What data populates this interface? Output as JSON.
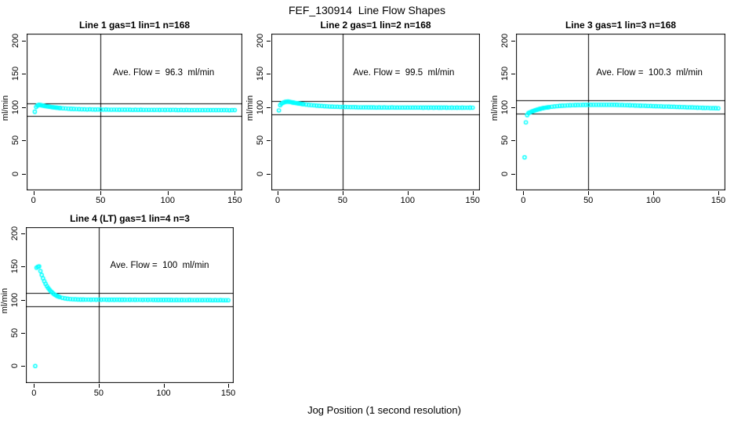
{
  "figure": {
    "title": "FEF_130914  Line Flow Shapes",
    "xlabel": "Jog Position (1 second resolution)",
    "background_color": "#ffffff",
    "frame_color": "#000000",
    "point_color": "#00ffff"
  },
  "chart_data": [
    {
      "type": "scatter",
      "title": "Line 1 gas=1 lin=1 n=168",
      "annotation": "Ave. Flow =  96.3  ml/min",
      "ave_flow": 96.3,
      "ylabel": "ml/min",
      "marker": "open-circle",
      "xticks": [
        0,
        50,
        100,
        150
      ],
      "yticks": [
        0,
        50,
        100,
        150,
        200
      ],
      "ref_line_upper": 105.9,
      "ref_line_lower": 86.7,
      "vline_x": 50,
      "xlim": [
        0,
        150
      ],
      "ylim": [
        0,
        200
      ],
      "points": [
        [
          1,
          93
        ],
        [
          2,
          100.1
        ],
        [
          3,
          102.4
        ],
        [
          4,
          103.4
        ],
        [
          5,
          103.1
        ],
        [
          6,
          102.7
        ],
        [
          7,
          102.3
        ],
        [
          8,
          101.9
        ],
        [
          9,
          101.5
        ],
        [
          10,
          101.2
        ],
        [
          11,
          100.8
        ],
        [
          12,
          100.5
        ],
        [
          13,
          100.2
        ],
        [
          14,
          99.9
        ],
        [
          15,
          99.7
        ],
        [
          16,
          99.4
        ],
        [
          17,
          99.2
        ],
        [
          18,
          99
        ],
        [
          19,
          98.8
        ],
        [
          20,
          98.6
        ],
        [
          22,
          98.2
        ],
        [
          24,
          97.9
        ],
        [
          26,
          97.6
        ],
        [
          28,
          97.4
        ],
        [
          30,
          97.2
        ],
        [
          32,
          97
        ],
        [
          34,
          96.9
        ],
        [
          36,
          96.7
        ],
        [
          38,
          96.6
        ],
        [
          40,
          96.5
        ],
        [
          42,
          96.6
        ],
        [
          44,
          96.4
        ],
        [
          46,
          96.3
        ],
        [
          48,
          96.4
        ],
        [
          50,
          96.3
        ],
        [
          52,
          96.2
        ],
        [
          54,
          96.3
        ],
        [
          56,
          96.2
        ],
        [
          58,
          96.1
        ],
        [
          60,
          96.2
        ],
        [
          62,
          96.1
        ],
        [
          64,
          96
        ],
        [
          66,
          96.1
        ],
        [
          68,
          96
        ],
        [
          70,
          96.1
        ],
        [
          72,
          96
        ],
        [
          74,
          95.9
        ],
        [
          76,
          96
        ],
        [
          78,
          95.9
        ],
        [
          80,
          96
        ],
        [
          82,
          95.9
        ],
        [
          84,
          95.8
        ],
        [
          86,
          95.9
        ],
        [
          88,
          95.8
        ],
        [
          90,
          95.9
        ],
        [
          92,
          95.8
        ],
        [
          94,
          95.7
        ],
        [
          96,
          95.8
        ],
        [
          98,
          95.7
        ],
        [
          100,
          95.8
        ],
        [
          102,
          95.7
        ],
        [
          104,
          95.8
        ],
        [
          106,
          95.7
        ],
        [
          108,
          95.6
        ],
        [
          110,
          95.7
        ],
        [
          112,
          95.6
        ],
        [
          114,
          95.7
        ],
        [
          116,
          95.6
        ],
        [
          118,
          95.5
        ],
        [
          120,
          95.6
        ],
        [
          122,
          95.5
        ],
        [
          124,
          95.6
        ],
        [
          126,
          95.5
        ],
        [
          128,
          95.6
        ],
        [
          130,
          95.5
        ],
        [
          132,
          95.4
        ],
        [
          134,
          95.5
        ],
        [
          136,
          95.4
        ],
        [
          138,
          95.5
        ],
        [
          140,
          95.4
        ],
        [
          142,
          95.5
        ],
        [
          144,
          95.4
        ],
        [
          146,
          95.3
        ],
        [
          148,
          95.4
        ],
        [
          150,
          95.5
        ]
      ]
    },
    {
      "type": "scatter",
      "title": "Line 2 gas=1 lin=2 n=168",
      "annotation": "Ave. Flow =  99.5  ml/min",
      "ave_flow": 99.5,
      "ylabel": "ml/min",
      "marker": "open-circle",
      "xticks": [
        0,
        50,
        100,
        150
      ],
      "yticks": [
        0,
        50,
        100,
        150,
        200
      ],
      "ref_line_upper": 109.5,
      "ref_line_lower": 89.6,
      "vline_x": 50,
      "xlim": [
        0,
        150
      ],
      "ylim": [
        0,
        200
      ],
      "points": [
        [
          1,
          95
        ],
        [
          2,
          103
        ],
        [
          3,
          105.3
        ],
        [
          4,
          106.4
        ],
        [
          5,
          107.2
        ],
        [
          6,
          107.8
        ],
        [
          7,
          108.1
        ],
        [
          8,
          108.3
        ],
        [
          9,
          107.9
        ],
        [
          10,
          107.5
        ],
        [
          11,
          107.2
        ],
        [
          12,
          106.8
        ],
        [
          13,
          106.5
        ],
        [
          14,
          106.1
        ],
        [
          15,
          105.8
        ],
        [
          16,
          105.5
        ],
        [
          17,
          105.2
        ],
        [
          18,
          104.9
        ],
        [
          19,
          104.6
        ],
        [
          20,
          104.3
        ],
        [
          22,
          103.8
        ],
        [
          24,
          103.3
        ],
        [
          26,
          102.9
        ],
        [
          28,
          102.5
        ],
        [
          30,
          102.2
        ],
        [
          32,
          101.9
        ],
        [
          34,
          101.6
        ],
        [
          36,
          101.3
        ],
        [
          38,
          101.1
        ],
        [
          40,
          100.9
        ],
        [
          42,
          100.7
        ],
        [
          44,
          100.6
        ],
        [
          46,
          100.4
        ],
        [
          48,
          100.3
        ],
        [
          50,
          100.2
        ],
        [
          52,
          100.1
        ],
        [
          54,
          100
        ],
        [
          56,
          99.9
        ],
        [
          58,
          99.9
        ],
        [
          60,
          99.8
        ],
        [
          62,
          99.7
        ],
        [
          64,
          99.7
        ],
        [
          66,
          99.6
        ],
        [
          68,
          99.6
        ],
        [
          70,
          99.5
        ],
        [
          72,
          99.5
        ],
        [
          74,
          99.5
        ],
        [
          76,
          99.4
        ],
        [
          78,
          99.5
        ],
        [
          80,
          99.4
        ],
        [
          82,
          99.5
        ],
        [
          84,
          99.4
        ],
        [
          86,
          99.4
        ],
        [
          88,
          99.5
        ],
        [
          90,
          99.4
        ],
        [
          92,
          99.3
        ],
        [
          94,
          99.4
        ],
        [
          96,
          99.3
        ],
        [
          98,
          99.4
        ],
        [
          100,
          99.3
        ],
        [
          102,
          99.4
        ],
        [
          104,
          99.3
        ],
        [
          106,
          99.3
        ],
        [
          108,
          99.4
        ],
        [
          110,
          99.3
        ],
        [
          112,
          99.2
        ],
        [
          114,
          99.3
        ],
        [
          116,
          99.2
        ],
        [
          118,
          99.3
        ],
        [
          120,
          99.2
        ],
        [
          122,
          99.3
        ],
        [
          124,
          99.2
        ],
        [
          126,
          99.2
        ],
        [
          128,
          99.3
        ],
        [
          130,
          99.2
        ],
        [
          132,
          99.1
        ],
        [
          134,
          99.2
        ],
        [
          136,
          99.1
        ],
        [
          138,
          99.2
        ],
        [
          140,
          99.1
        ],
        [
          142,
          99.2
        ],
        [
          144,
          99.1
        ],
        [
          146,
          99.1
        ],
        [
          148,
          99.2
        ],
        [
          150,
          99.1
        ]
      ]
    },
    {
      "type": "scatter",
      "title": "Line 3 gas=1 lin=3 n=168",
      "annotation": "Ave. Flow =  100.3  ml/min",
      "ave_flow": 100.3,
      "ylabel": "ml/min",
      "marker": "open-circle",
      "xticks": [
        0,
        50,
        100,
        150
      ],
      "yticks": [
        0,
        50,
        100,
        150,
        200
      ],
      "ref_line_upper": 110.3,
      "ref_line_lower": 90.3,
      "vline_x": 50,
      "xlim": [
        0,
        150
      ],
      "ylim": [
        0,
        200
      ],
      "points": [
        [
          1,
          24.5
        ],
        [
          2,
          77
        ],
        [
          3,
          88
        ],
        [
          4,
          91
        ],
        [
          5,
          91.9
        ],
        [
          6,
          92.8
        ],
        [
          7,
          93.6
        ],
        [
          8,
          94.4
        ],
        [
          9,
          95.1
        ],
        [
          10,
          95.7
        ],
        [
          11,
          96.3
        ],
        [
          12,
          96.9
        ],
        [
          13,
          97.4
        ],
        [
          14,
          97.9
        ],
        [
          15,
          98.3
        ],
        [
          16,
          98.7
        ],
        [
          17,
          99.1
        ],
        [
          18,
          99.4
        ],
        [
          19,
          99.7
        ],
        [
          20,
          100
        ],
        [
          22,
          100.6
        ],
        [
          24,
          101
        ],
        [
          26,
          101.4
        ],
        [
          28,
          101.8
        ],
        [
          30,
          102.1
        ],
        [
          32,
          102.3
        ],
        [
          34,
          102.6
        ],
        [
          36,
          102.7
        ],
        [
          38,
          102.9
        ],
        [
          40,
          103
        ],
        [
          42,
          103.1
        ],
        [
          44,
          103.2
        ],
        [
          46,
          103.3
        ],
        [
          48,
          103.3
        ],
        [
          50,
          103.4
        ],
        [
          52,
          103.4
        ],
        [
          54,
          103.5
        ],
        [
          56,
          103.5
        ],
        [
          58,
          103.5
        ],
        [
          60,
          103.5
        ],
        [
          62,
          103.5
        ],
        [
          64,
          103.5
        ],
        [
          66,
          103.5
        ],
        [
          68,
          103.4
        ],
        [
          70,
          103.4
        ],
        [
          72,
          103.3
        ],
        [
          74,
          103.2
        ],
        [
          76,
          103.1
        ],
        [
          78,
          102.9
        ],
        [
          80,
          102.8
        ],
        [
          82,
          102.7
        ],
        [
          84,
          102.5
        ],
        [
          86,
          102.4
        ],
        [
          88,
          102.3
        ],
        [
          90,
          102.1
        ],
        [
          92,
          102
        ],
        [
          94,
          101.9
        ],
        [
          96,
          101.7
        ],
        [
          98,
          101.6
        ],
        [
          100,
          101.5
        ],
        [
          102,
          101.3
        ],
        [
          104,
          101.2
        ],
        [
          106,
          101.1
        ],
        [
          108,
          100.9
        ],
        [
          110,
          100.8
        ],
        [
          112,
          100.7
        ],
        [
          114,
          100.5
        ],
        [
          116,
          100.4
        ],
        [
          118,
          100.3
        ],
        [
          120,
          100.1
        ],
        [
          122,
          100
        ],
        [
          124,
          99.9
        ],
        [
          126,
          99.7
        ],
        [
          128,
          99.6
        ],
        [
          130,
          99.5
        ],
        [
          132,
          99.3
        ],
        [
          134,
          99.2
        ],
        [
          136,
          99.1
        ],
        [
          138,
          98.9
        ],
        [
          140,
          98.8
        ],
        [
          142,
          98.7
        ],
        [
          144,
          98.5
        ],
        [
          146,
          98.4
        ],
        [
          148,
          98.3
        ],
        [
          150,
          98.2
        ]
      ]
    },
    {
      "type": "scatter",
      "title": "Line 4 (LT) gas=1 lin=4 n=3",
      "annotation": "Ave. Flow =  100  ml/min",
      "ave_flow": 100,
      "ylabel": "ml/min",
      "marker": "open-circle",
      "xticks": [
        0,
        50,
        100,
        150
      ],
      "yticks": [
        0,
        50,
        100,
        150,
        200
      ],
      "ref_line_upper": 110,
      "ref_line_lower": 90,
      "vline_x": 50,
      "xlim": [
        0,
        150
      ],
      "ylim": [
        0,
        200
      ],
      "points": [
        [
          1,
          0
        ],
        [
          2,
          148
        ],
        [
          3,
          149.5
        ],
        [
          4,
          150
        ],
        [
          5,
          143
        ],
        [
          6,
          137.1
        ],
        [
          7,
          132
        ],
        [
          8,
          127.6
        ],
        [
          9,
          123.7
        ],
        [
          10,
          120.4
        ],
        [
          11,
          117.4
        ],
        [
          12,
          114.9
        ],
        [
          13,
          112.7
        ],
        [
          14,
          110.8
        ],
        [
          15,
          109.2
        ],
        [
          16,
          107.7
        ],
        [
          17,
          106.5
        ],
        [
          18,
          105.4
        ],
        [
          19,
          104.6
        ],
        [
          20,
          103.8
        ],
        [
          22,
          102.7
        ],
        [
          24,
          101.9
        ],
        [
          26,
          101.3
        ],
        [
          28,
          100.9
        ],
        [
          30,
          100.6
        ],
        [
          32,
          100.4
        ],
        [
          34,
          100.2
        ],
        [
          36,
          100.1
        ],
        [
          38,
          100.1
        ],
        [
          40,
          100
        ],
        [
          42,
          100
        ],
        [
          44,
          99.9
        ],
        [
          46,
          100
        ],
        [
          48,
          99.9
        ],
        [
          50,
          100
        ],
        [
          52,
          99.9
        ],
        [
          54,
          100
        ],
        [
          56,
          99.9
        ],
        [
          58,
          99.8
        ],
        [
          60,
          99.9
        ],
        [
          62,
          99.8
        ],
        [
          64,
          99.9
        ],
        [
          66,
          99.8
        ],
        [
          68,
          99.8
        ],
        [
          70,
          99.8
        ],
        [
          72,
          99.7
        ],
        [
          74,
          99.8
        ],
        [
          76,
          99.7
        ],
        [
          78,
          99.8
        ],
        [
          80,
          99.7
        ],
        [
          82,
          99.7
        ],
        [
          84,
          99.6
        ],
        [
          86,
          99.7
        ],
        [
          88,
          99.6
        ],
        [
          90,
          99.7
        ],
        [
          92,
          99.6
        ],
        [
          94,
          99.6
        ],
        [
          96,
          99.5
        ],
        [
          98,
          99.6
        ],
        [
          100,
          99.5
        ],
        [
          102,
          99.6
        ],
        [
          104,
          99.5
        ],
        [
          106,
          99.5
        ],
        [
          108,
          99.4
        ],
        [
          110,
          99.5
        ],
        [
          112,
          99.4
        ],
        [
          114,
          99.5
        ],
        [
          116,
          99.4
        ],
        [
          118,
          99.4
        ],
        [
          120,
          99.5
        ],
        [
          122,
          99.4
        ],
        [
          124,
          99.4
        ],
        [
          126,
          99.3
        ],
        [
          128,
          99.4
        ],
        [
          130,
          99.3
        ],
        [
          132,
          99.4
        ],
        [
          134,
          99.3
        ],
        [
          136,
          99.3
        ],
        [
          138,
          99.2
        ],
        [
          140,
          99.3
        ],
        [
          142,
          99.2
        ],
        [
          144,
          99.3
        ],
        [
          146,
          99.2
        ],
        [
          148,
          99.2
        ],
        [
          150,
          99.1
        ]
      ]
    }
  ]
}
